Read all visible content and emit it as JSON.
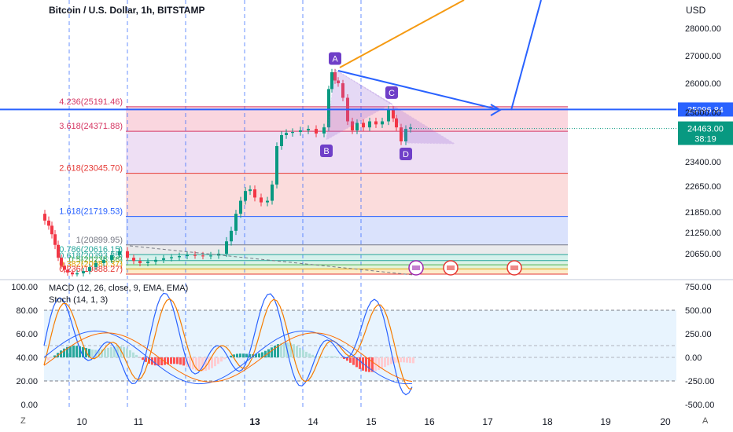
{
  "header": {
    "symbol_title": "Bitcoin / U.S. Dollar, 1h, BITSTAMP",
    "macd_label": "MACD (12, 26, close, 9, EMA, EMA)",
    "stoch_label": "Stoch (14, 1, 3)",
    "currency": "USD"
  },
  "corner": {
    "left": "Z",
    "right": "A"
  },
  "chart_data": {
    "type": "line",
    "title": "Bitcoin / U.S. Dollar, 1h, BITSTAMP",
    "price_axis_ticks": [
      "28000.00",
      "27000.00",
      "26000.00",
      "25000.00",
      "23400.00",
      "22650.00",
      "21850.00",
      "21250.00",
      "20650.00"
    ],
    "price_levels": [
      28000,
      27000,
      26000,
      25000,
      23400,
      22650,
      21850,
      21250,
      20650
    ],
    "time_axis_ticks": [
      "10",
      "11",
      "13",
      "14",
      "15",
      "16",
      "17",
      "18",
      "19",
      "20"
    ],
    "time_axis_bold": "13",
    "fibonacci_levels": [
      {
        "label": "4.236(25191.46)",
        "ratio": 4.236,
        "price": 25191.46,
        "color": "#d63864"
      },
      {
        "label": "3.618(24371.88)",
        "ratio": 3.618,
        "price": 24371.88,
        "color": "#d63864"
      },
      {
        "label": "2.618(23045.70)",
        "ratio": 2.618,
        "price": 23045.7,
        "color": "#e53935"
      },
      {
        "label": "1.618(21719.53)",
        "ratio": 1.618,
        "price": 21719.53,
        "color": "#2962ff"
      },
      {
        "label": "1(20899.95)",
        "ratio": 1,
        "price": 20899.95,
        "color": "#787b86"
      },
      {
        "label": "0.786(20616.15)",
        "ratio": 0.786,
        "price": 20616.15,
        "color": "#26a69a"
      },
      {
        "label": "0.618(20393.35)",
        "ratio": 0.618,
        "price": 20393.35,
        "color": "#26a69a"
      },
      {
        "label": "0.5(20235.86)",
        "ratio": 0.5,
        "price": 20235.86,
        "color": "#4caf50"
      },
      {
        "label": "0.382(20080.37)",
        "ratio": 0.382,
        "price": 20080.37,
        "color": "#e6a000"
      },
      {
        "label": "0.236(19888.27)",
        "ratio": 0.236,
        "price": 19888.27,
        "color": "#e53935"
      }
    ],
    "horizontal_line": {
      "price": 25096.84,
      "label": "25096.84",
      "color": "#2962ff"
    },
    "last_price": {
      "price": 24463.0,
      "label": "24463.00",
      "countdown": "38:19",
      "color": "#089981"
    },
    "pattern_points": [
      {
        "name": "A",
        "price": 26500
      },
      {
        "name": "B",
        "price": 24100
      },
      {
        "name": "C",
        "price": 25300
      },
      {
        "name": "D",
        "price": 24000
      }
    ],
    "stoch_axis_ticks": [
      "100.00",
      "80.00",
      "60.00",
      "40.00",
      "20.00",
      "0.00"
    ],
    "stoch_levels": [
      100,
      80,
      60,
      40,
      20,
      0
    ],
    "macd_axis_ticks": [
      "750.00",
      "500.00",
      "250.00",
      "0.00",
      "-250.00",
      "-500.00"
    ],
    "macd_levels": [
      750,
      500,
      250,
      0,
      -250,
      -500
    ],
    "grid": false
  }
}
